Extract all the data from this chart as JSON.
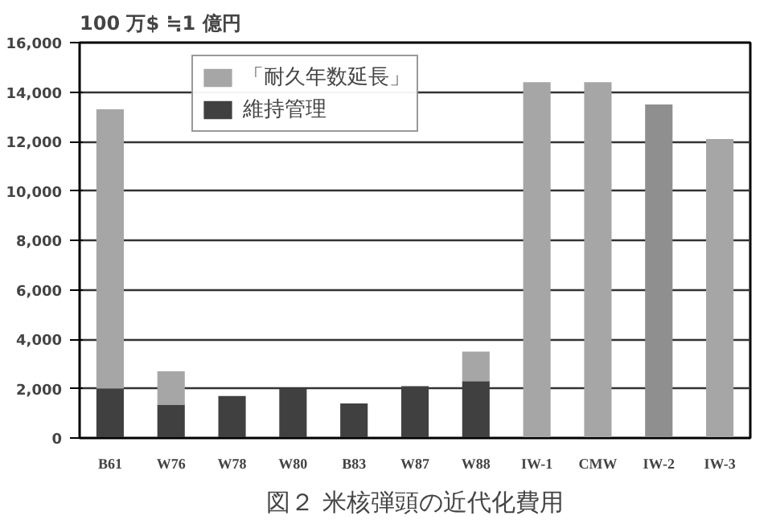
{
  "chart_data": {
    "type": "bar",
    "stacked": true,
    "title": "図２ 米核弾頭の近代化費用",
    "ylabel": "100 万$ ≒1 億円",
    "categories": [
      "B61",
      "W76",
      "W78",
      "W80",
      "B83",
      "W87",
      "W88",
      "IW-1",
      "CMW",
      "IW-2",
      "IW-3"
    ],
    "series": [
      {
        "name": "維持管理",
        "color": "#404040",
        "values": [
          2000,
          1350,
          1700,
          2000,
          1400,
          2100,
          2300,
          null,
          null,
          null,
          null
        ]
      },
      {
        "name": "「耐久年数延長」",
        "color": "#a6a6a6",
        "colors": [
          "#a6a6a6",
          "#a6a6a6",
          "#a6a6a6",
          "#a6a6a6",
          "#a6a6a6",
          "#a6a6a6",
          "#a6a6a6",
          "#a6a6a6",
          "#a6a6a6",
          "#8f8f8f",
          "#a6a6a6"
        ],
        "values": [
          11300,
          1350,
          null,
          null,
          null,
          null,
          1200,
          14400,
          14400,
          13500,
          12100
        ]
      }
    ],
    "ylim": [
      0,
      16000
    ],
    "yticks": [
      {
        "value": 0,
        "label": "0"
      },
      {
        "value": 2000,
        "label": "2,000"
      },
      {
        "value": 4000,
        "label": "4,000"
      },
      {
        "value": 6000,
        "label": "6,000"
      },
      {
        "value": 8000,
        "label": "8,000"
      },
      {
        "value": 10000,
        "label": "10,000"
      },
      {
        "value": 12000,
        "label": "12,000"
      },
      {
        "value": 14000,
        "label": "14,000"
      },
      {
        "value": 16000,
        "label": "16,000"
      }
    ],
    "grid": "y",
    "legend": "top left"
  }
}
